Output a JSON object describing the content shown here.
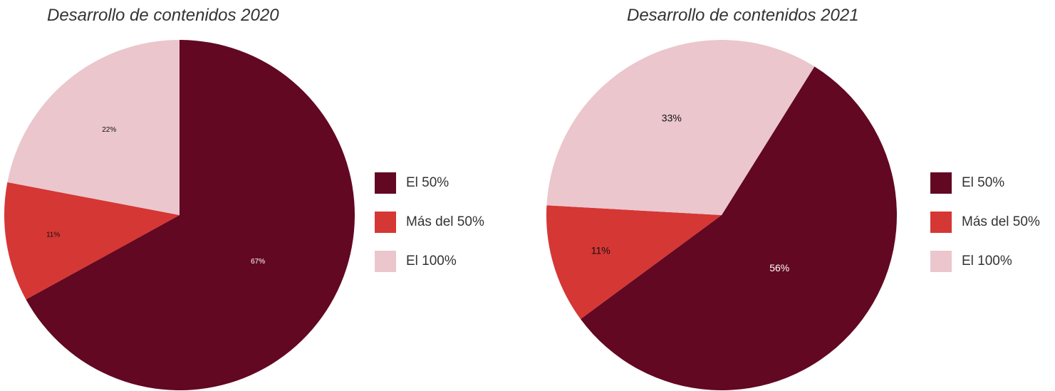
{
  "chart_data": [
    {
      "type": "pie",
      "title": "Desarrollo de contenidos 2020",
      "categories": [
        "El 50%",
        "Más del 50%",
        "El 100%"
      ],
      "values": [
        67,
        11,
        22
      ],
      "labels": [
        "67%",
        "11%",
        "22%"
      ],
      "colors": [
        "#620822",
        "#d53734",
        "#ebc6cd"
      ],
      "label_colors": [
        "#ffffff",
        "#111111",
        "#111111"
      ],
      "start_angle_deg": 0,
      "direction": "clockwise",
      "legend_position": "right"
    },
    {
      "type": "pie",
      "title": "Desarrollo de contenidos 2021",
      "categories": [
        "El 50%",
        "Más del 50%",
        "El 100%"
      ],
      "values": [
        56,
        11,
        33
      ],
      "labels": [
        "56%",
        "11%",
        "33%"
      ],
      "colors": [
        "#620822",
        "#d53734",
        "#ebc6cd"
      ],
      "label_colors": [
        "#ffffff",
        "#111111",
        "#111111"
      ],
      "start_angle_deg": 32,
      "direction": "clockwise",
      "legend_position": "right"
    }
  ]
}
